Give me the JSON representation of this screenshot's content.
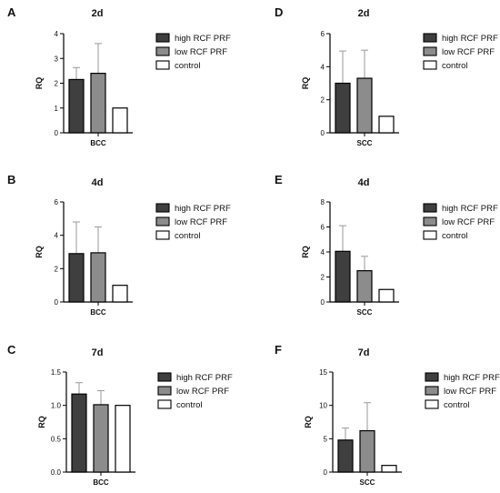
{
  "figure": {
    "legend_labels": [
      "high RCF PRF",
      "low RCF PRF",
      "control"
    ],
    "series_colors": [
      "#3f3f3f",
      "#8c8c8c",
      "#ffffff"
    ]
  },
  "chart_data": [
    {
      "panel": "A",
      "type": "bar",
      "title": "2d",
      "xlabel": "BCC",
      "ylabel": "RQ",
      "ylim": [
        0,
        4
      ],
      "yticks": [
        "0",
        "1",
        "2",
        "3",
        "4"
      ],
      "categories": [
        "BCC"
      ],
      "series": [
        {
          "name": "high RCF PRF",
          "values": [
            2.15
          ],
          "error": [
            0.48
          ]
        },
        {
          "name": "low RCF PRF",
          "values": [
            2.4
          ],
          "error": [
            1.2
          ]
        },
        {
          "name": "control",
          "values": [
            1.0
          ],
          "error": [
            0
          ]
        }
      ],
      "legend": "right"
    },
    {
      "panel": "B",
      "type": "bar",
      "title": "4d",
      "xlabel": "BCC",
      "ylabel": "RQ",
      "ylim": [
        0,
        6
      ],
      "yticks": [
        "0",
        "2",
        "4",
        "6"
      ],
      "categories": [
        "BCC"
      ],
      "series": [
        {
          "name": "high RCF PRF",
          "values": [
            2.9
          ],
          "error": [
            1.9
          ]
        },
        {
          "name": "low RCF PRF",
          "values": [
            2.95
          ],
          "error": [
            1.55
          ]
        },
        {
          "name": "control",
          "values": [
            1.0
          ],
          "error": [
            0
          ]
        }
      ],
      "legend": "right"
    },
    {
      "panel": "C",
      "type": "bar",
      "title": "7d",
      "xlabel": "BCC",
      "ylabel": "RQ",
      "ylim": [
        0,
        1.5
      ],
      "yticks": [
        "0.0",
        "0.5",
        "1.0",
        "1.5"
      ],
      "categories": [
        "BCC"
      ],
      "series": [
        {
          "name": "high RCF PRF",
          "values": [
            1.17
          ],
          "error": [
            0.17
          ]
        },
        {
          "name": "low RCF PRF",
          "values": [
            1.01
          ],
          "error": [
            0.21
          ]
        },
        {
          "name": "control",
          "values": [
            1.0
          ],
          "error": [
            0
          ]
        }
      ],
      "legend": "right"
    },
    {
      "panel": "D",
      "type": "bar",
      "title": "2d",
      "xlabel": "SCC",
      "ylabel": "RQ",
      "ylim": [
        0,
        6
      ],
      "yticks": [
        "0",
        "2",
        "4",
        "6"
      ],
      "categories": [
        "SCC"
      ],
      "series": [
        {
          "name": "high RCF PRF",
          "values": [
            3.0
          ],
          "error": [
            1.95
          ]
        },
        {
          "name": "low RCF PRF",
          "values": [
            3.3
          ],
          "error": [
            1.7
          ]
        },
        {
          "name": "control",
          "values": [
            1.0
          ],
          "error": [
            0
          ]
        }
      ],
      "legend": "right"
    },
    {
      "panel": "E",
      "type": "bar",
      "title": "4d",
      "xlabel": "SCC",
      "ylabel": "RQ",
      "ylim": [
        0,
        8
      ],
      "yticks": [
        "0",
        "2",
        "4",
        "6",
        "8"
      ],
      "categories": [
        "SCC"
      ],
      "series": [
        {
          "name": "high RCF PRF",
          "values": [
            4.05
          ],
          "error": [
            2.05
          ]
        },
        {
          "name": "low RCF PRF",
          "values": [
            2.5
          ],
          "error": [
            1.15
          ]
        },
        {
          "name": "control",
          "values": [
            1.0
          ],
          "error": [
            0
          ]
        }
      ],
      "legend": "right"
    },
    {
      "panel": "F",
      "type": "bar",
      "title": "7d",
      "xlabel": "SCC",
      "ylabel": "RQ",
      "ylim": [
        0,
        15
      ],
      "yticks": [
        "0",
        "5",
        "10",
        "15"
      ],
      "categories": [
        "SCC"
      ],
      "series": [
        {
          "name": "high RCF PRF",
          "values": [
            4.8
          ],
          "error": [
            1.8
          ]
        },
        {
          "name": "low RCF PRF",
          "values": [
            6.2
          ],
          "error": [
            4.2
          ]
        },
        {
          "name": "control",
          "values": [
            1.0
          ],
          "error": [
            0
          ]
        }
      ],
      "legend": "right"
    }
  ]
}
